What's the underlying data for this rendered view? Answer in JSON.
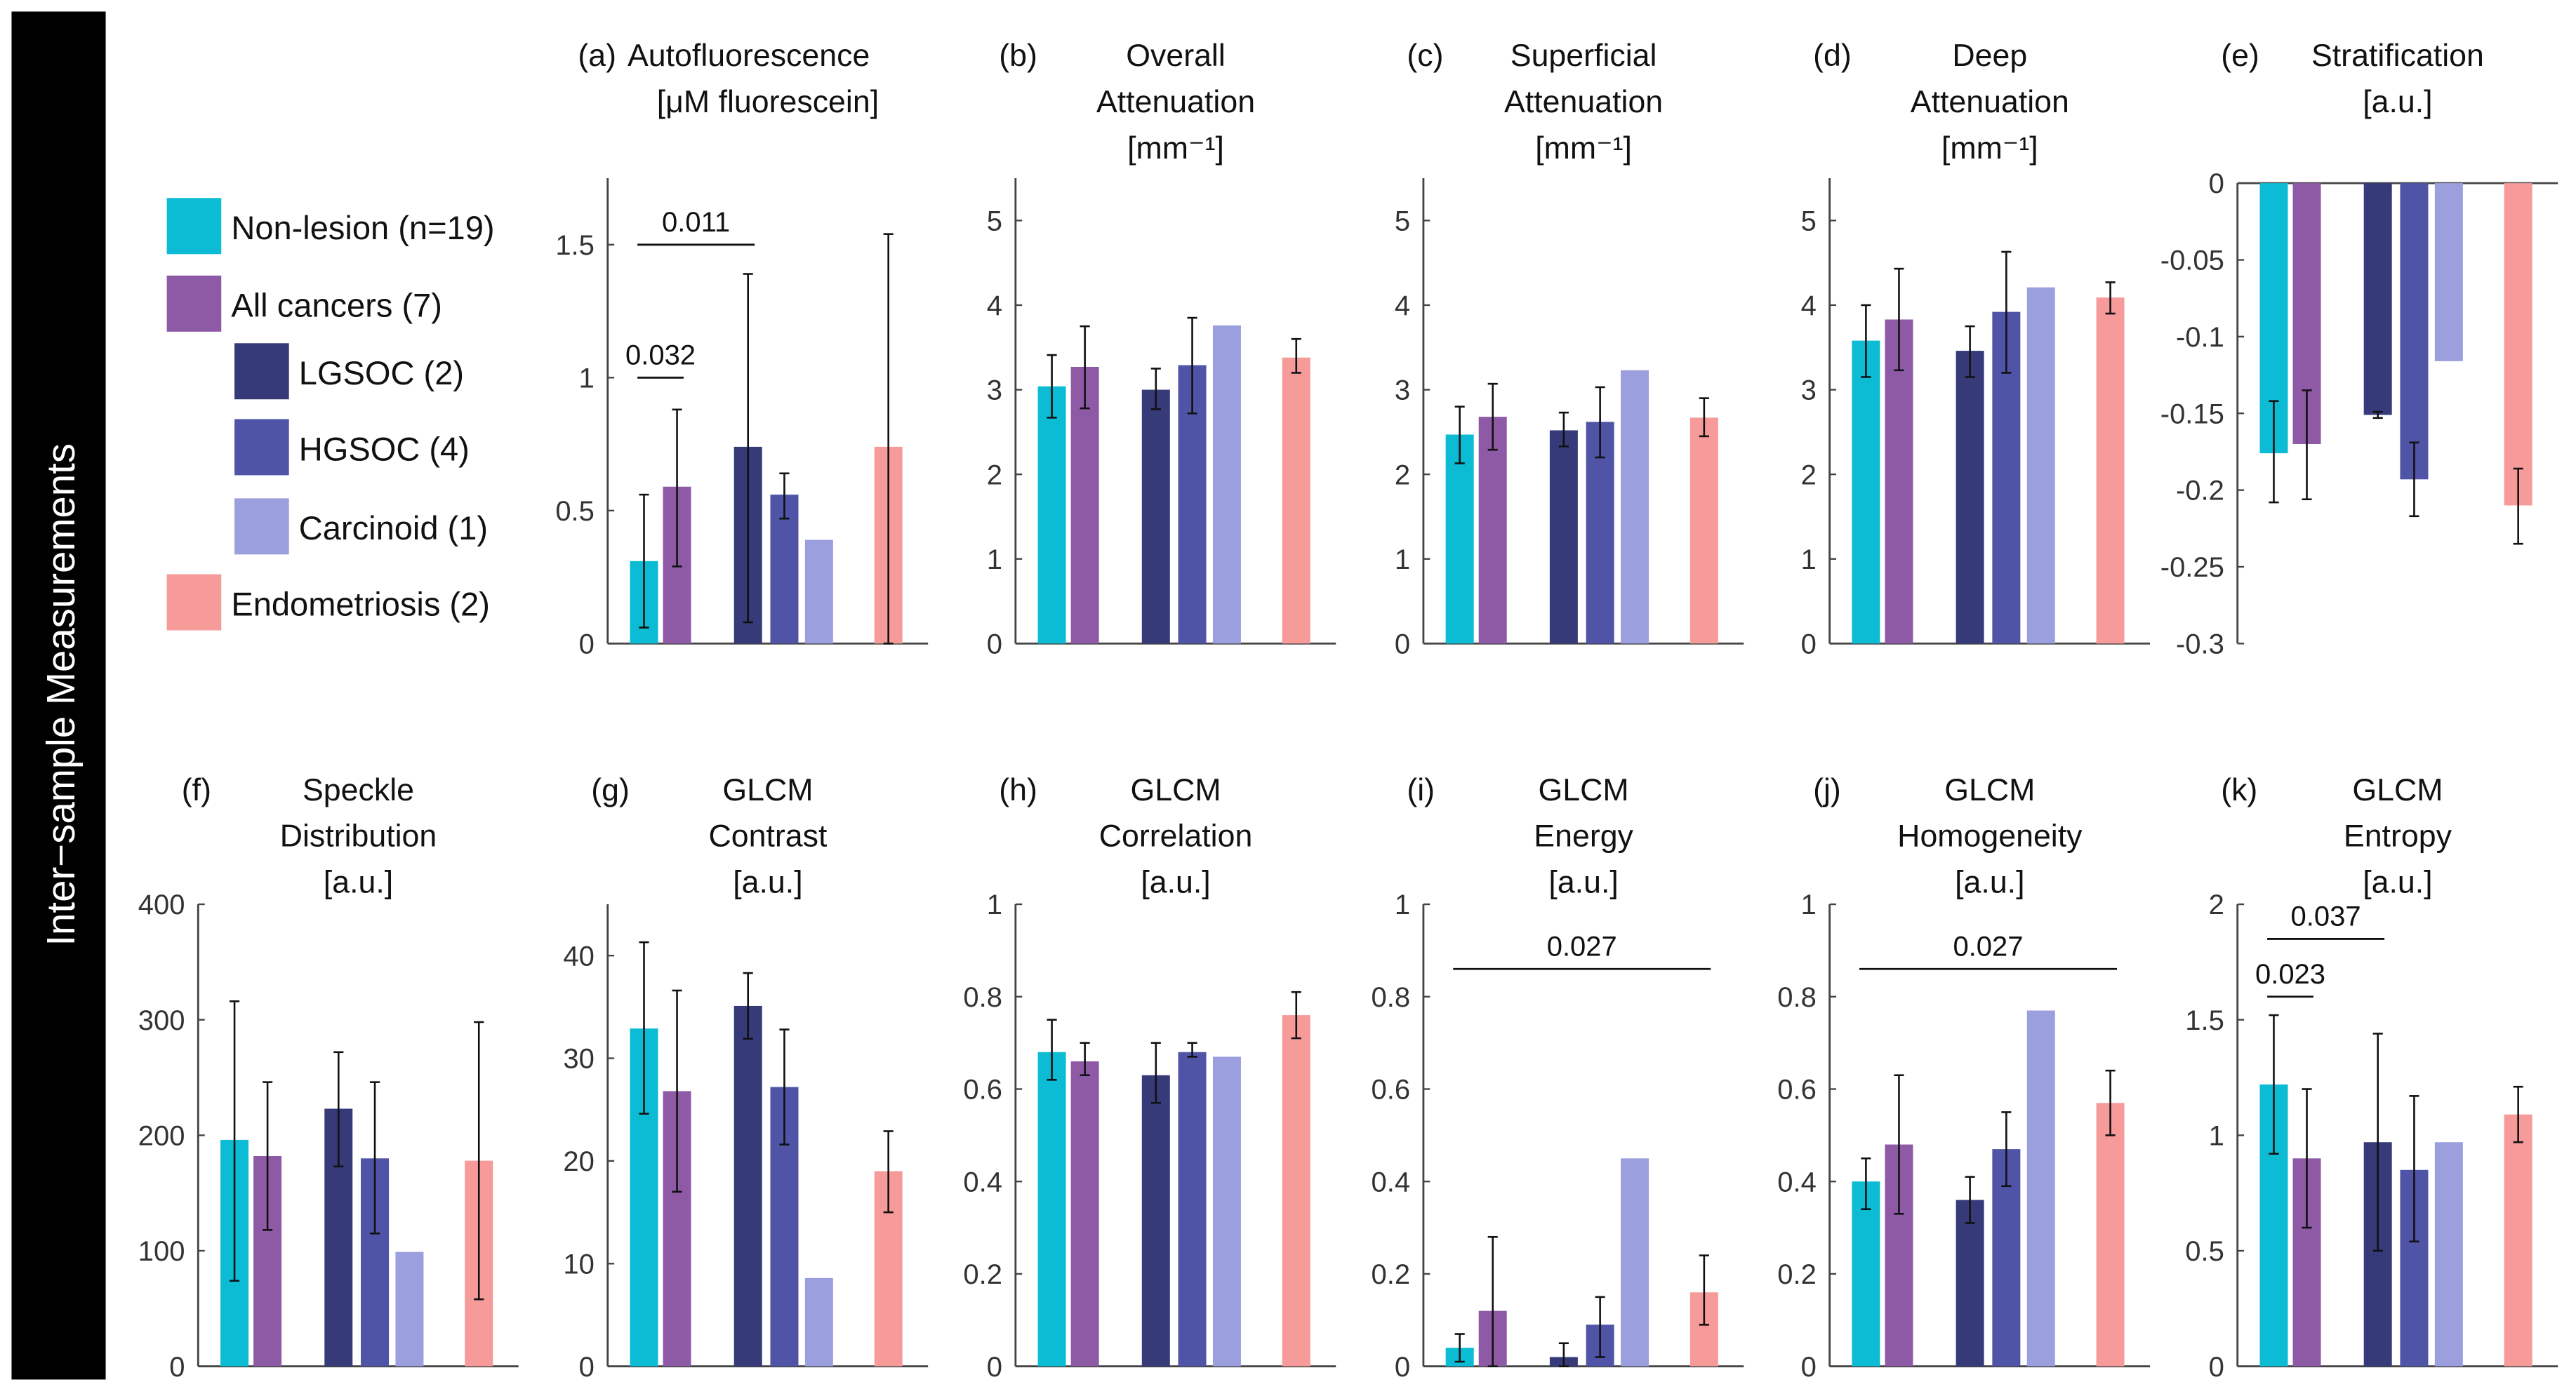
{
  "side_label": "Inter−sample Measurements",
  "legend": [
    {
      "label": "Non-lesion (n=19)",
      "color": "#0BBCD4",
      "indent": false
    },
    {
      "label": "All cancers (7)",
      "color": "#8E5AA6",
      "indent": false
    },
    {
      "label": "LGSOC (2)",
      "color": "#363A78",
      "indent": true
    },
    {
      "label": "HGSOC (4)",
      "color": "#4F54A6",
      "indent": true
    },
    {
      "label": "Carcinoid (1)",
      "color": "#9C9FDE",
      "indent": true
    },
    {
      "label": "Endometriosis (2)",
      "color": "#F69A9A",
      "indent": false
    }
  ],
  "chart_data": [
    {
      "type": "bar",
      "panel": "(a)",
      "title": [
        "Autofluorescence",
        "[μM fluorescein]"
      ],
      "inline_label": true,
      "ylim": [
        0,
        1.75
      ],
      "yticks": [
        "0",
        "0.5",
        "1",
        "1.5"
      ],
      "ytick_values": [
        0,
        0.5,
        1,
        1.5
      ],
      "values": [
        0.31,
        0.59,
        0.74,
        0.56,
        0.39,
        0.74
      ],
      "err_low": [
        0.06,
        0.29,
        0.08,
        0.47,
        null,
        0.0
      ],
      "err_high": [
        0.56,
        0.88,
        1.39,
        0.64,
        null,
        1.54
      ],
      "significance": [
        {
          "label": "0.032",
          "from": 0,
          "to": 1,
          "y": 1.0
        },
        {
          "label": "0.011",
          "from": 0,
          "to": 2,
          "y": 1.5
        }
      ]
    },
    {
      "type": "bar",
      "panel": "(b)",
      "title": [
        "Overall",
        "Attenuation",
        "[mm⁻¹]"
      ],
      "ylim": [
        0,
        5.5
      ],
      "yticks": [
        "0",
        "1",
        "2",
        "3",
        "4",
        "5"
      ],
      "ytick_values": [
        0,
        1,
        2,
        3,
        4,
        5
      ],
      "values": [
        3.04,
        3.27,
        3.0,
        3.29,
        3.76,
        3.38
      ],
      "err_low": [
        2.67,
        2.78,
        2.77,
        2.72,
        null,
        3.2
      ],
      "err_high": [
        3.41,
        3.75,
        3.25,
        3.85,
        null,
        3.6
      ],
      "significance": []
    },
    {
      "type": "bar",
      "panel": "(c)",
      "title": [
        "Superficial",
        "Attenuation",
        "[mm⁻¹]"
      ],
      "ylim": [
        0,
        5.5
      ],
      "yticks": [
        "0",
        "1",
        "2",
        "3",
        "4",
        "5"
      ],
      "ytick_values": [
        0,
        1,
        2,
        3,
        4,
        5
      ],
      "values": [
        2.47,
        2.68,
        2.52,
        2.62,
        3.23,
        2.67
      ],
      "err_low": [
        2.13,
        2.29,
        2.33,
        2.2,
        null,
        2.45
      ],
      "err_high": [
        2.8,
        3.07,
        2.73,
        3.03,
        null,
        2.9
      ],
      "significance": []
    },
    {
      "type": "bar",
      "panel": "(d)",
      "title": [
        "Deep",
        "Attenuation",
        "[mm⁻¹]"
      ],
      "ylim": [
        0,
        5.5
      ],
      "yticks": [
        "0",
        "1",
        "2",
        "3",
        "4",
        "5"
      ],
      "ytick_values": [
        0,
        1,
        2,
        3,
        4,
        5
      ],
      "values": [
        3.58,
        3.83,
        3.46,
        3.92,
        4.21,
        4.09
      ],
      "err_low": [
        3.15,
        3.23,
        3.15,
        3.2,
        null,
        3.9
      ],
      "err_high": [
        4.0,
        4.43,
        3.75,
        4.63,
        null,
        4.27
      ],
      "significance": []
    },
    {
      "type": "bar",
      "panel": "(e)",
      "title": [
        "Stratification",
        "[a.u.]"
      ],
      "ylim": [
        -0.3,
        0
      ],
      "inverted_baseline": true,
      "yticks": [
        "0",
        "-0.05",
        "-0.1",
        "-0.15",
        "-0.2",
        "-0.25",
        "-0.3"
      ],
      "ytick_values": [
        0,
        -0.05,
        -0.1,
        -0.15,
        -0.2,
        -0.25,
        -0.3
      ],
      "values": [
        -0.176,
        -0.17,
        -0.151,
        -0.193,
        -0.116,
        -0.21
      ],
      "err_low": [
        -0.208,
        -0.206,
        -0.153,
        -0.217,
        null,
        -0.235
      ],
      "err_high": [
        -0.142,
        -0.135,
        -0.149,
        -0.169,
        null,
        -0.186
      ],
      "significance": []
    },
    {
      "type": "bar",
      "panel": "(f)",
      "title": [
        "Speckle",
        "Distribution",
        "[a.u.]"
      ],
      "ylim": [
        0,
        400
      ],
      "yticks": [
        "0",
        "100",
        "200",
        "300",
        "400"
      ],
      "ytick_values": [
        0,
        100,
        200,
        300,
        400
      ],
      "values": [
        196,
        182,
        223,
        180,
        99,
        178
      ],
      "err_low": [
        74,
        118,
        173,
        115,
        null,
        58
      ],
      "err_high": [
        316,
        246,
        272,
        246,
        null,
        298
      ],
      "significance": []
    },
    {
      "type": "bar",
      "panel": "(g)",
      "title": [
        "GLCM",
        "Contrast",
        "[a.u.]"
      ],
      "ylim": [
        0,
        45
      ],
      "yticks": [
        "0",
        "10",
        "20",
        "30",
        "40"
      ],
      "ytick_values": [
        0,
        10,
        20,
        30,
        40
      ],
      "values": [
        32.9,
        26.8,
        35.1,
        27.2,
        8.6,
        19.0
      ],
      "err_low": [
        24.6,
        17.0,
        31.9,
        21.6,
        null,
        15.0
      ],
      "err_high": [
        41.3,
        36.6,
        38.3,
        32.8,
        null,
        22.9
      ],
      "significance": []
    },
    {
      "type": "bar",
      "panel": "(h)",
      "title": [
        "GLCM",
        "Correlation",
        "[a.u.]"
      ],
      "ylim": [
        0,
        1
      ],
      "yticks": [
        "0",
        "0.2",
        "0.4",
        "0.6",
        "0.8",
        "1"
      ],
      "ytick_values": [
        0,
        0.2,
        0.4,
        0.6,
        0.8,
        1
      ],
      "values": [
        0.68,
        0.66,
        0.63,
        0.68,
        0.67,
        0.76
      ],
      "err_low": [
        0.62,
        0.63,
        0.57,
        0.67,
        null,
        0.71
      ],
      "err_high": [
        0.75,
        0.7,
        0.7,
        0.7,
        null,
        0.81
      ],
      "significance": []
    },
    {
      "type": "bar",
      "panel": "(i)",
      "title": [
        "GLCM",
        "Energy",
        "[a.u.]"
      ],
      "ylim": [
        0,
        1
      ],
      "yticks": [
        "0",
        "0.2",
        "0.4",
        "0.6",
        "0.8",
        "1"
      ],
      "ytick_values": [
        0,
        0.2,
        0.4,
        0.6,
        0.8,
        1
      ],
      "values": [
        0.04,
        0.12,
        0.02,
        0.09,
        0.45,
        0.16
      ],
      "err_low": [
        0.01,
        0.0,
        0.0,
        0.02,
        null,
        0.09
      ],
      "err_high": [
        0.07,
        0.28,
        0.05,
        0.15,
        null,
        0.24
      ],
      "significance": [
        {
          "label": "0.027",
          "from": 0,
          "to": 5,
          "y": 0.86
        }
      ]
    },
    {
      "type": "bar",
      "panel": "(j)",
      "title": [
        "GLCM",
        "Homogeneity",
        "[a.u.]"
      ],
      "ylim": [
        0,
        1
      ],
      "yticks": [
        "0",
        "0.2",
        "0.4",
        "0.6",
        "0.8",
        "1"
      ],
      "ytick_values": [
        0,
        0.2,
        0.4,
        0.6,
        0.8,
        1
      ],
      "values": [
        0.4,
        0.48,
        0.36,
        0.47,
        0.77,
        0.57
      ],
      "err_low": [
        0.34,
        0.33,
        0.31,
        0.39,
        null,
        0.5
      ],
      "err_high": [
        0.45,
        0.63,
        0.41,
        0.55,
        null,
        0.64
      ],
      "significance": [
        {
          "label": "0.027",
          "from": 0,
          "to": 5,
          "y": 0.86
        }
      ]
    },
    {
      "type": "bar",
      "panel": "(k)",
      "title": [
        "GLCM",
        "Entropy",
        "[a.u.]"
      ],
      "ylim": [
        0,
        2
      ],
      "yticks": [
        "0",
        "0.5",
        "1",
        "1.5",
        "2"
      ],
      "ytick_values": [
        0,
        0.5,
        1,
        1.5,
        2
      ],
      "values": [
        1.22,
        0.9,
        0.97,
        0.85,
        0.97,
        1.09
      ],
      "err_low": [
        0.92,
        0.6,
        0.5,
        0.54,
        null,
        0.97
      ],
      "err_high": [
        1.52,
        1.2,
        1.44,
        1.17,
        null,
        1.21
      ],
      "significance": [
        {
          "label": "0.023",
          "from": 0,
          "to": 1,
          "y": 1.6
        },
        {
          "label": "0.037",
          "from": 0,
          "to": 2,
          "y": 1.85
        }
      ]
    }
  ]
}
